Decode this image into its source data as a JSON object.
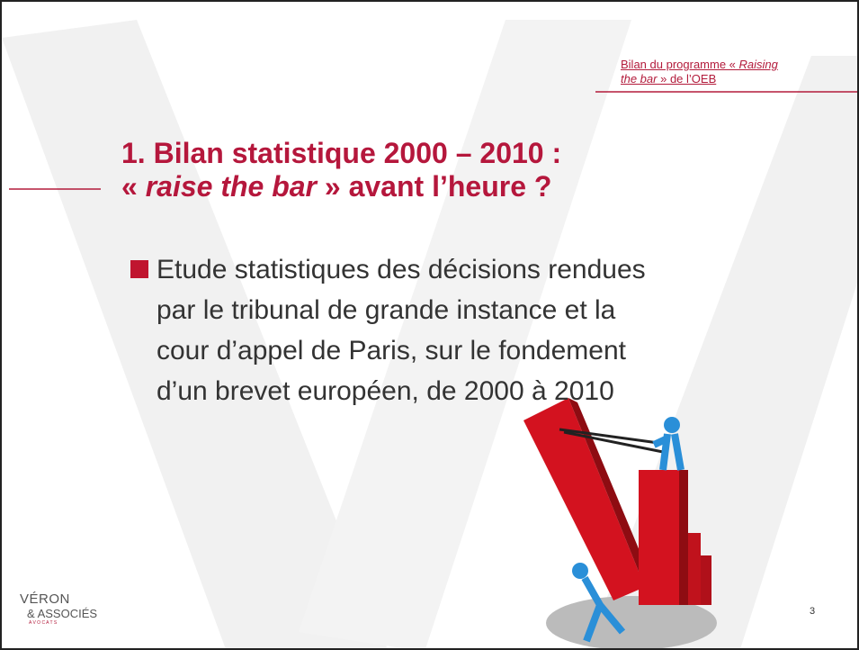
{
  "header": {
    "note_line1": [
      "Bilan du programme « ",
      "Raising"
    ],
    "note_line2": [
      "the bar",
      " » de l’OEB"
    ]
  },
  "title": {
    "line1": "1. Bilan statistique 2000 – 2010 :",
    "line2": [
      "« ",
      "raise the bar",
      " » avant l’heure ?"
    ]
  },
  "bullet": {
    "lines": [
      "Etude statistiques des décisions rendues",
      "par le tribunal de grande instance et la",
      "cour d’appel de Paris, sur le fondement",
      "d’un brevet européen, de 2000 à 2010"
    ]
  },
  "logo": {
    "name": "VÉRON",
    "associates": "& ASSOCIÉS",
    "profession": "A V O C A T S"
  },
  "footer": {
    "page_number": "3"
  }
}
